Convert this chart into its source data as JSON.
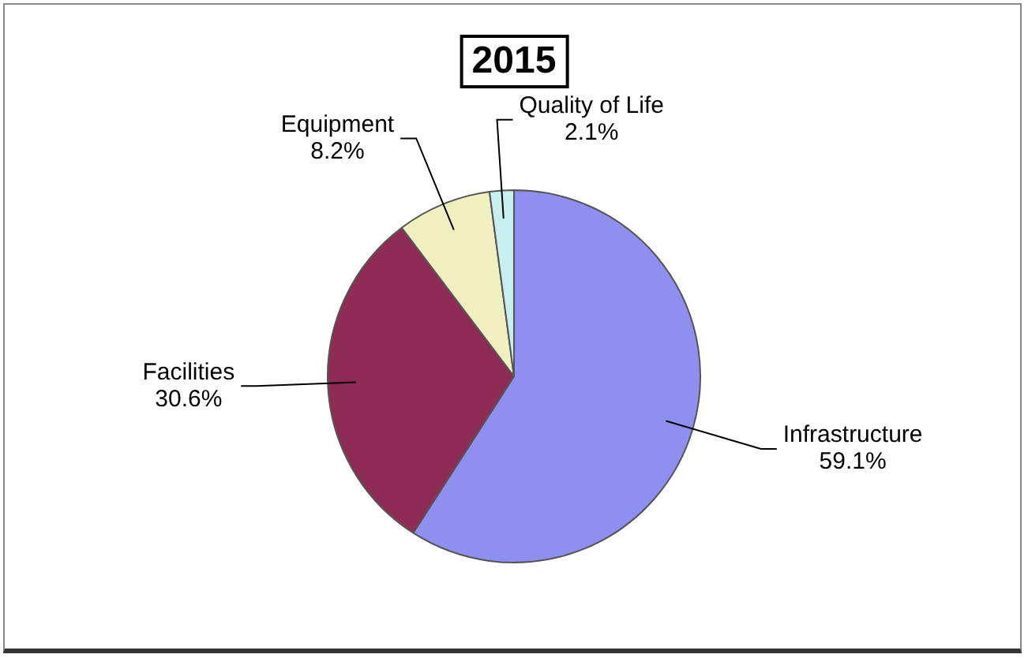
{
  "chart_data": {
    "type": "pie",
    "title": "2015",
    "categories": [
      "Infrastructure",
      "Facilities",
      "Equipment",
      "Quality of Life"
    ],
    "values": [
      59.1,
      30.6,
      8.2,
      2.1
    ],
    "value_labels": [
      "59.1%",
      "30.6%",
      "8.2%",
      "2.1%"
    ],
    "colors": [
      "#8f8fef",
      "#8e2c55",
      "#efefc0",
      "#c8f0f0"
    ],
    "legend": false
  }
}
